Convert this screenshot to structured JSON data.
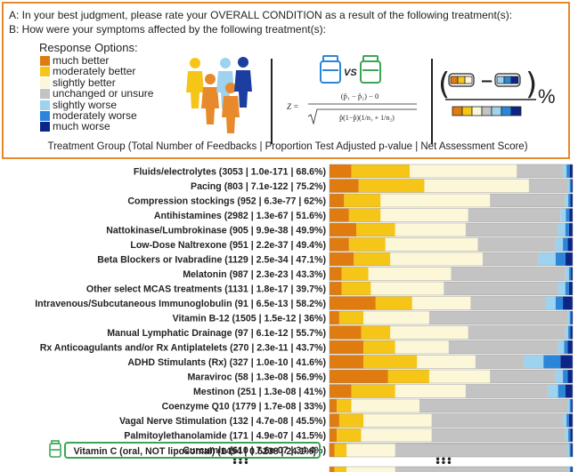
{
  "header": {
    "line_a": "A: In your best judgment, please rate your OVERALL CONDITION as a result of the following treatment(s):",
    "line_b": "B: How were your symptoms affected by the following treatment(s):",
    "response_title": "Response Options:",
    "footer": "Treatment Group (Total Number of Feedbacks | Proportion Test Adjusted p-value | Net Assessment Score)"
  },
  "response_options": [
    {
      "label": "much better",
      "color": "#e07b10"
    },
    {
      "label": "moderately better",
      "color": "#f5c518"
    },
    {
      "label": "slightly better",
      "color": "#fbf7d8"
    },
    {
      "label": "unchanged or unsure",
      "color": "#c3c3c3"
    },
    {
      "label": "slightly worse",
      "color": "#9dd3ee"
    },
    {
      "label": "moderately worse",
      "color": "#2b86d9"
    },
    {
      "label": "much worse",
      "color": "#0b2686"
    }
  ],
  "formula": {
    "vs": "VS",
    "z": "Z =",
    "numerator": "(p̂₁ − p̂₂) − 0",
    "denominator": "p̂(1−p̂)(1/n₁ + 1/n₂)",
    "percent": "%",
    "minus": "−"
  },
  "highlight_row": "Vitamin C (oral, NOT liposomal) (1454 | 0.5238 | 24.1%)",
  "ellipsis": "•••",
  "chart_data": {
    "type": "bar",
    "orientation": "horizontal",
    "stacked": "percent",
    "series_order": [
      "much better",
      "moderately better",
      "slightly better",
      "unchanged or unsure",
      "slightly worse",
      "moderately worse",
      "much worse"
    ],
    "rows": [
      {
        "label": "Fluids/electrolytes (3053 | 1.0e-171 | 68.6%)",
        "values": [
          9,
          24,
          44,
          19,
          1.5,
          1.3,
          1.2
        ]
      },
      {
        "label": "Pacing (803 | 7.1e-122 | 75.2%)",
        "values": [
          12,
          27,
          43,
          16,
          0.8,
          0.6,
          0.6
        ]
      },
      {
        "label": "Compression stockings (952 | 6.3e-77 | 62%)",
        "values": [
          6,
          15,
          45,
          31,
          1.2,
          0.9,
          0.9
        ]
      },
      {
        "label": "Antihistamines (2982 | 1.3e-67 | 51.6%)",
        "values": [
          8,
          13,
          36,
          38,
          2.2,
          1.5,
          1.3
        ]
      },
      {
        "label": "Nattokinase/Lumbrokinase (905 | 9.9e-38 | 49.9%)",
        "values": [
          11,
          16,
          29,
          38,
          3,
          1.5,
          1.5
        ]
      },
      {
        "label": "Low-Dose Naltrexone (951 | 2.2e-37 | 49.4%)",
        "values": [
          8,
          15,
          38,
          32,
          3,
          2,
          2
        ]
      },
      {
        "label": "Beta Blockers or Ivabradine (1129 | 2.5e-34 | 47.1%)",
        "values": [
          10,
          15,
          38,
          23,
          7,
          4,
          3
        ]
      },
      {
        "label": "Melatonin (987 | 2.3e-23 | 43.3%)",
        "values": [
          5,
          11,
          34,
          47,
          1.5,
          0.8,
          0.7
        ]
      },
      {
        "label": "Other select MCAS treatments (1131 | 1.8e-17 | 39.7%)",
        "values": [
          5,
          12,
          30,
          47,
          3,
          1.5,
          1.5
        ]
      },
      {
        "label": "Intravenous/Subcutaneous Immunoglobulin (91 | 6.5e-13 | 58.2%)",
        "values": [
          19,
          15,
          24,
          31,
          4,
          3,
          4
        ]
      },
      {
        "label": "Vitamin B-12 (1505 | 1.5e-12 | 36%)",
        "values": [
          4,
          10,
          27,
          57,
          0.8,
          0.6,
          0.6
        ]
      },
      {
        "label": "Manual Lymphatic Drainage (97 | 6.1e-12 | 55.7%)",
        "values": [
          13,
          12,
          32,
          40,
          1.2,
          0.9,
          0.9
        ]
      },
      {
        "label": "Rx Anticoagulants and/or Rx Antiplatelets (270 | 2.3e-11 | 43.7%)",
        "values": [
          14,
          13,
          22,
          45,
          2.5,
          1.5,
          2
        ]
      },
      {
        "label": "ADHD Stimulants (Rx) (327 | 1.0e-10 | 41.6%)",
        "values": [
          14,
          22,
          24,
          20,
          8,
          7,
          5
        ]
      },
      {
        "label": "Maraviroc (58 | 1.3e-08 | 56.9%)",
        "values": [
          24,
          17,
          25,
          27,
          3,
          2,
          2
        ]
      },
      {
        "label": "Mestinon (251 | 1.3e-08 | 41%)",
        "values": [
          9,
          18,
          29,
          34,
          4,
          3,
          3
        ]
      },
      {
        "label": "Coenzyme Q10 (1779 | 1.7e-08 | 33%)",
        "values": [
          3,
          6,
          28,
          61,
          0.8,
          0.6,
          0.6
        ]
      },
      {
        "label": "Vagal Nerve Stimulation (132 | 4.7e-08 | 45.5%)",
        "values": [
          4,
          10,
          28,
          54,
          1.5,
          1,
          1.5
        ]
      },
      {
        "label": "Palmitoylethanolamide (171 | 4.9e-07 | 41.5%)",
        "values": [
          3,
          10,
          29,
          55,
          1.2,
          0.9,
          0.9
        ]
      },
      {
        "label": "Curcumin (610 | 7.6e-07 | 34.4%)",
        "values": [
          3,
          7,
          29,
          58,
          1.2,
          0.9,
          0.9
        ]
      }
    ],
    "highlight": {
      "label": "Vitamin C (oral, NOT liposomal) (1454 | 0.5238 | 24.1%)",
      "values": [
        2,
        5,
        20,
        71,
        0.8,
        0.6,
        0.6
      ]
    },
    "xlim": [
      0,
      100
    ],
    "grid": false,
    "legend": "top"
  }
}
